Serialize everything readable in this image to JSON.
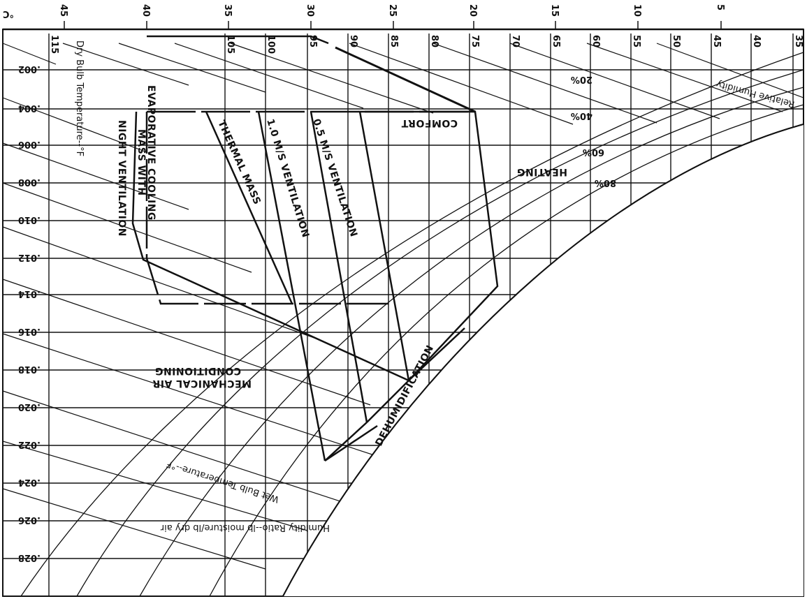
{
  "chart_data": {
    "type": "psychrometric",
    "orientation": "rotated",
    "axes": {
      "dry_bulb_celsius_ticks": [
        "5",
        "10",
        "15",
        "20",
        "25",
        "30",
        "35",
        "40",
        "45"
      ],
      "dry_bulb_celsius_unit": "°C",
      "dry_bulb_fahrenheit_ticks": [
        "35",
        "40",
        "45",
        "50",
        "55",
        "60",
        "65",
        "70",
        "75",
        "80",
        "85",
        "90",
        "95",
        "100",
        "105",
        "115"
      ],
      "humidity_ratio_ticks": [
        ".002",
        ".004",
        ".006",
        ".008",
        ".010",
        ".012",
        ".014",
        ".016",
        ".018",
        ".020",
        ".022",
        ".024",
        ".026",
        ".028"
      ],
      "dry_bulb_title": "Dry Bulb Temperature--°F",
      "wet_bulb_title": "Wet Bulb Temperature--°F",
      "humidity_ratio_title": "Humidity Ratio--lb moisture/lb dry air",
      "relative_humidity_title": "Relative Humidity",
      "rh_labels": [
        "20%",
        "40%",
        "60%",
        "80%"
      ]
    },
    "zones": [
      {
        "name": "COMFORT"
      },
      {
        "name": "0.5 M/S VENTILATION"
      },
      {
        "name": "1.0 M/S VENTILATION"
      },
      {
        "name": "THERMAL MASS"
      },
      {
        "name": "EVAPORATIVE COOLING"
      },
      {
        "name": "MASS WITH"
      },
      {
        "name": "NIGHT VENTILATION"
      },
      {
        "name": "HEATING"
      },
      {
        "name": "DEHUMIDIFICATION"
      },
      {
        "name": "MECHANICAL AIR"
      },
      {
        "name": "CONDITIONING"
      }
    ]
  }
}
